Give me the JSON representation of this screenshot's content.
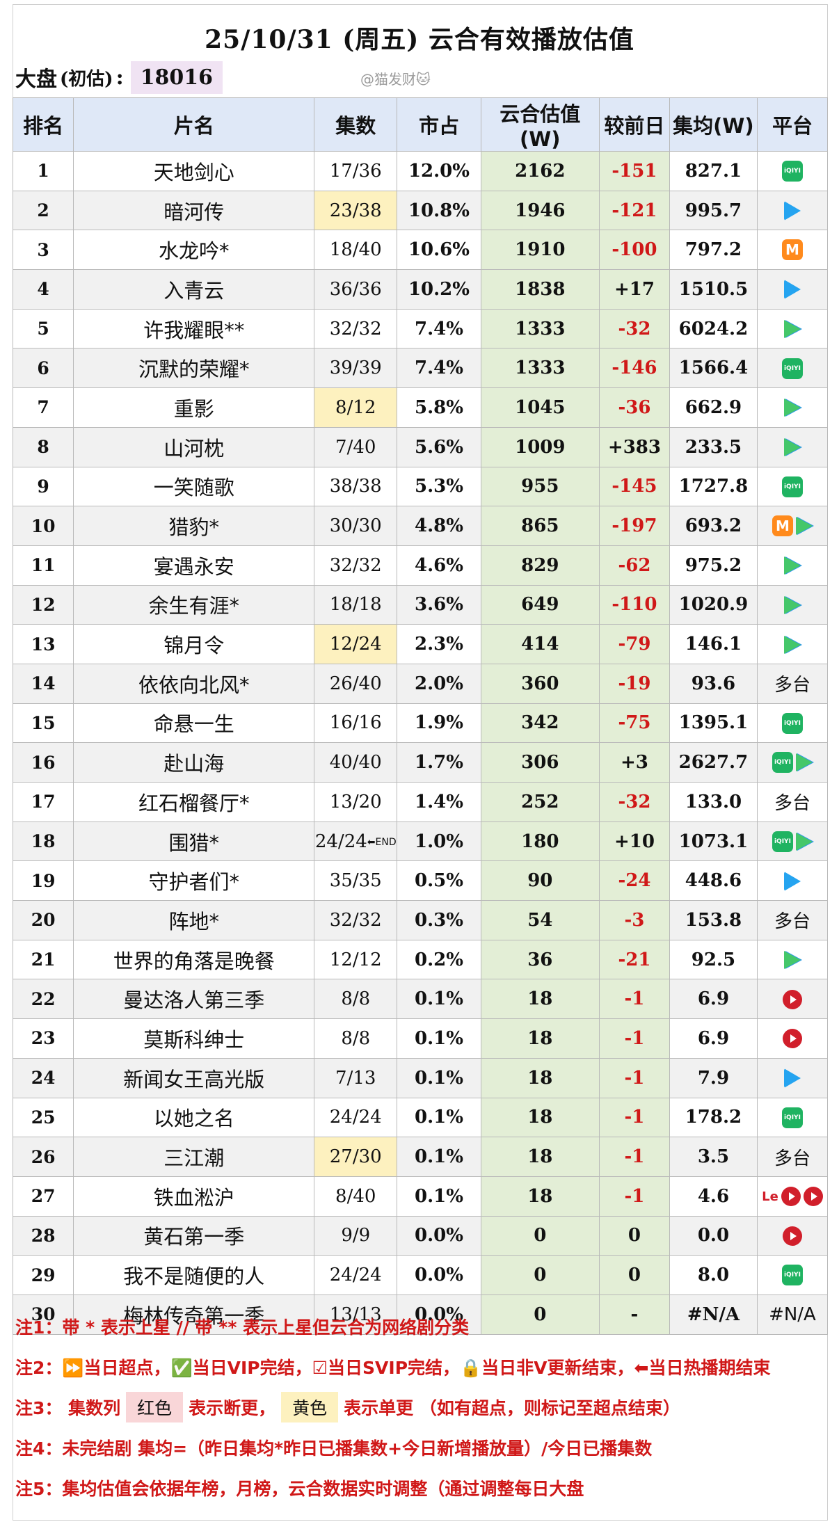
{
  "header": {
    "title": "25/10/31 (周五) 云合有效播放估值",
    "dapan_label": "大盘",
    "dapan_sub": "(初估)",
    "dapan_colon": ":",
    "dapan_value": "18016",
    "watermark": "@猫发财🐱"
  },
  "columns": [
    "排名",
    "片名",
    "集数",
    "市占",
    "云合估值(W)",
    "较前日",
    "集均(W)",
    "平台"
  ],
  "rows": [
    {
      "rank": "1",
      "name": "天地剑心",
      "eps": "17/36",
      "share": "12.0%",
      "value": "2162",
      "change": "-151",
      "avg": "827.1",
      "platform": [
        "iqiyi"
      ],
      "eps_hl": ""
    },
    {
      "rank": "2",
      "name": "暗河传",
      "eps": "23/38",
      "share": "10.8%",
      "value": "1946",
      "change": "-121",
      "avg": "995.7",
      "platform": [
        "tencent"
      ],
      "eps_hl": "yellow"
    },
    {
      "rank": "3",
      "name": "水龙吟*",
      "eps": "18/40",
      "share": "10.6%",
      "value": "1910",
      "change": "-100",
      "avg": "797.2",
      "platform": [
        "mango"
      ],
      "eps_hl": ""
    },
    {
      "rank": "4",
      "name": "入青云",
      "eps": "36/36",
      "share": "10.2%",
      "value": "1838",
      "change": "+17",
      "avg": "1510.5",
      "platform": [
        "tencent"
      ],
      "eps_hl": ""
    },
    {
      "rank": "5",
      "name": "许我耀眼**",
      "eps": "32/32",
      "share": "7.4%",
      "value": "1333",
      "change": "-32",
      "avg": "6024.2",
      "platform": [
        "tencent2"
      ],
      "eps_hl": ""
    },
    {
      "rank": "6",
      "name": "沉默的荣耀*",
      "eps": "39/39",
      "share": "7.4%",
      "value": "1333",
      "change": "-146",
      "avg": "1566.4",
      "platform": [
        "iqiyi"
      ],
      "eps_hl": ""
    },
    {
      "rank": "7",
      "name": "重影",
      "eps": "8/12",
      "share": "5.8%",
      "value": "1045",
      "change": "-36",
      "avg": "662.9",
      "platform": [
        "tencent2"
      ],
      "eps_hl": "yellow"
    },
    {
      "rank": "8",
      "name": "山河枕",
      "eps": "7/40",
      "share": "5.6%",
      "value": "1009",
      "change": "+383",
      "avg": "233.5",
      "platform": [
        "tencent2"
      ],
      "eps_hl": ""
    },
    {
      "rank": "9",
      "name": "一笑随歌",
      "eps": "38/38",
      "share": "5.3%",
      "value": "955",
      "change": "-145",
      "avg": "1727.8",
      "platform": [
        "iqiyi"
      ],
      "eps_hl": ""
    },
    {
      "rank": "10",
      "name": "猎豹*",
      "eps": "30/30",
      "share": "4.8%",
      "value": "865",
      "change": "-197",
      "avg": "693.2",
      "platform": [
        "mango",
        "tencent2"
      ],
      "eps_hl": ""
    },
    {
      "rank": "11",
      "name": "宴遇永安",
      "eps": "32/32",
      "share": "4.6%",
      "value": "829",
      "change": "-62",
      "avg": "975.2",
      "platform": [
        "tencent2"
      ],
      "eps_hl": ""
    },
    {
      "rank": "12",
      "name": "余生有涯*",
      "eps": "18/18",
      "share": "3.6%",
      "value": "649",
      "change": "-110",
      "avg": "1020.9",
      "platform": [
        "tencent2"
      ],
      "eps_hl": ""
    },
    {
      "rank": "13",
      "name": "锦月令",
      "eps": "12/24",
      "share": "2.3%",
      "value": "414",
      "change": "-79",
      "avg": "146.1",
      "platform": [
        "tencent2"
      ],
      "eps_hl": "yellow"
    },
    {
      "rank": "14",
      "name": "依依向北风*",
      "eps": "26/40",
      "share": "2.0%",
      "value": "360",
      "change": "-19",
      "avg": "93.6",
      "platform": [
        "多台"
      ],
      "eps_hl": ""
    },
    {
      "rank": "15",
      "name": "命悬一生",
      "eps": "16/16",
      "share": "1.9%",
      "value": "342",
      "change": "-75",
      "avg": "1395.1",
      "platform": [
        "iqiyi"
      ],
      "eps_hl": ""
    },
    {
      "rank": "16",
      "name": "赴山海",
      "eps": "40/40",
      "share": "1.7%",
      "value": "306",
      "change": "+3",
      "avg": "2627.7",
      "platform": [
        "iqiyi",
        "tencent2"
      ],
      "eps_hl": ""
    },
    {
      "rank": "17",
      "name": "红石榴餐厅*",
      "eps": "13/20",
      "share": "1.4%",
      "value": "252",
      "change": "-32",
      "avg": "133.0",
      "platform": [
        "多台"
      ],
      "eps_hl": ""
    },
    {
      "rank": "18",
      "name": "围猎*",
      "eps": "24/24",
      "share": "1.0%",
      "value": "180",
      "change": "+10",
      "avg": "1073.1",
      "platform": [
        "iqiyi",
        "tencent2"
      ],
      "eps_hl": "",
      "eps_end": "⬅END"
    },
    {
      "rank": "19",
      "name": "守护者们*",
      "eps": "35/35",
      "share": "0.5%",
      "value": "90",
      "change": "-24",
      "avg": "448.6",
      "platform": [
        "tencent"
      ],
      "eps_hl": ""
    },
    {
      "rank": "20",
      "name": "阵地*",
      "eps": "32/32",
      "share": "0.3%",
      "value": "54",
      "change": "-3",
      "avg": "153.8",
      "platform": [
        "多台"
      ],
      "eps_hl": ""
    },
    {
      "rank": "21",
      "name": "世界的角落是晚餐",
      "eps": "12/12",
      "share": "0.2%",
      "value": "36",
      "change": "-21",
      "avg": "92.5",
      "platform": [
        "tencent2"
      ],
      "eps_hl": ""
    },
    {
      "rank": "22",
      "name": "曼达洛人第三季",
      "eps": "8/8",
      "share": "0.1%",
      "value": "18",
      "change": "-1",
      "avg": "6.9",
      "platform": [
        "youku"
      ],
      "eps_hl": ""
    },
    {
      "rank": "23",
      "name": "莫斯科绅士",
      "eps": "8/8",
      "share": "0.1%",
      "value": "18",
      "change": "-1",
      "avg": "6.9",
      "platform": [
        "youku"
      ],
      "eps_hl": ""
    },
    {
      "rank": "24",
      "name": "新闻女王高光版",
      "eps": "7/13",
      "share": "0.1%",
      "value": "18",
      "change": "-1",
      "avg": "7.9",
      "platform": [
        "tencent"
      ],
      "eps_hl": ""
    },
    {
      "rank": "25",
      "name": "以她之名",
      "eps": "24/24",
      "share": "0.1%",
      "value": "18",
      "change": "-1",
      "avg": "178.2",
      "platform": [
        "iqiyi"
      ],
      "eps_hl": ""
    },
    {
      "rank": "26",
      "name": "三江潮",
      "eps": "27/30",
      "share": "0.1%",
      "value": "18",
      "change": "-1",
      "avg": "3.5",
      "platform": [
        "多台"
      ],
      "eps_hl": "yellow"
    },
    {
      "rank": "27",
      "name": "铁血淞沪",
      "eps": "8/40",
      "share": "0.1%",
      "value": "18",
      "change": "-1",
      "avg": "4.6",
      "platform": [
        "le",
        "youku",
        "youku"
      ],
      "eps_hl": ""
    },
    {
      "rank": "28",
      "name": "黄石第一季",
      "eps": "9/9",
      "share": "0.0%",
      "value": "0",
      "change": "0",
      "avg": "0.0",
      "platform": [
        "youku"
      ],
      "eps_hl": ""
    },
    {
      "rank": "29",
      "name": "我不是随便的人",
      "eps": "24/24",
      "share": "0.0%",
      "value": "0",
      "change": "0",
      "avg": "8.0",
      "platform": [
        "iqiyi"
      ],
      "eps_hl": ""
    },
    {
      "rank": "30",
      "name": "梅林传奇第一季",
      "eps": "13/13",
      "share": "0.0%",
      "value": "0",
      "change": "-",
      "avg": "#N/A",
      "platform": [
        "#N/A"
      ],
      "eps_hl": ""
    }
  ],
  "notes": {
    "n1": "注1：带 * 表示上星 // 带 ** 表示上星但云合为网络剧分类",
    "n2": "注2：⏩当日超点，✅当日VIP完结，☑当日SVIP完结，🔒当日非V更新结束，⬅当日热播期结束",
    "n3_a": "注3：  集数列",
    "n3_red": "红色",
    "n3_b": "表示断更，",
    "n3_yel": "黄色",
    "n3_c": "表示单更 （如有超点，则标记至超点结束）",
    "n4": "注4：未完结剧 集均=（昨日集均*昨日已播集数+今日新增播放量）/今日已播集数",
    "n5": "注5：集均估值会依据年榜，月榜，云合数据实时调整（通过调整每日大盘"
  },
  "icon_names": {
    "iqiyi": "iqiyi-icon",
    "tencent": "tencent-video-icon",
    "tencent2": "tencent-video-icon",
    "mango": "mango-tv-icon",
    "youku": "youku-icon",
    "le": "letv-icon"
  },
  "colors": {
    "header_bg": "#dfe8f7",
    "value_col_bg": "#e3eed6",
    "negative": "#d01818",
    "yellow_hl": "#fdf1bf",
    "dapan_hl": "#f0e3f3"
  }
}
